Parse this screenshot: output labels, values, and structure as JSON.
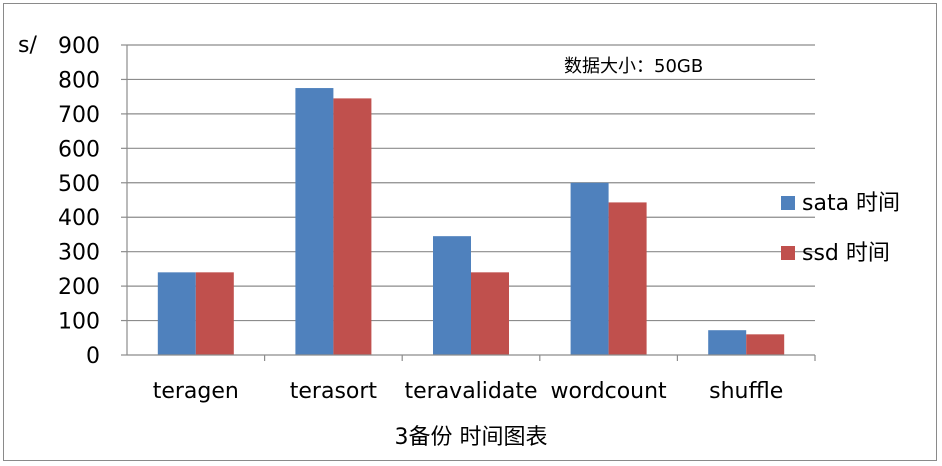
{
  "chart_data": {
    "type": "bar",
    "xlabel": "3备份 时间图表",
    "ylabel": "s/",
    "annotation": "数据大小：50GB",
    "ylim": [
      0,
      900
    ],
    "yticks": [
      0,
      100,
      200,
      300,
      400,
      500,
      600,
      700,
      800,
      900
    ],
    "categories": [
      "teragen",
      "terasort",
      "teravalidate",
      "wordcount",
      "shuffle"
    ],
    "series": [
      {
        "name": "sata 时间",
        "color": "#4f81bd",
        "values": [
          240,
          775,
          345,
          500,
          72
        ]
      },
      {
        "name": "ssd 时间",
        "color": "#c0504d",
        "values": [
          240,
          745,
          240,
          443,
          60
        ]
      }
    ],
    "grid": true,
    "legend_position": "right"
  }
}
